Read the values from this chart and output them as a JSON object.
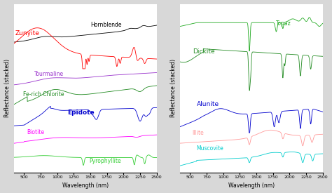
{
  "xmin": 350,
  "xmax": 2500,
  "xlabel": "Wavelength (nm)",
  "ylabel": "Reflectance (stacked)",
  "xticks": [
    500,
    750,
    1000,
    1250,
    1500,
    1750,
    2000,
    2250,
    2500
  ],
  "bg_color": "#D8D8D8",
  "left_color_map": {
    "Hornblende": "black",
    "Zunyite": "red",
    "Tourmaline": "#9932CC",
    "Fe-rich Chlorite": "#228B22",
    "Epidote": "#0000CD",
    "Biotite": "#FF00FF",
    "Pyrophyllite": "#32CD32"
  },
  "right_color_map": {
    "Topaz": "#22AA22",
    "Dickite": "#228B22",
    "Alunite": "#0000CD",
    "Illite": "#FF9999",
    "Muscovite": "#00CCCC"
  },
  "left_label_configs": [
    [
      "Hornblende",
      1500,
      2.18,
      "black",
      5.5,
      false
    ],
    [
      "Zunyite",
      370,
      2.05,
      "red",
      6.5,
      false
    ],
    [
      "Tourmaline",
      650,
      1.42,
      "#9932CC",
      5.5,
      false
    ],
    [
      "Fe-rich Chlorite",
      490,
      1.1,
      "#228B22",
      5.5,
      false
    ],
    [
      "Epidote",
      1150,
      0.82,
      "#0000CD",
      6.5,
      true
    ],
    [
      "Biotite",
      540,
      0.52,
      "#FF00FF",
      5.5,
      false
    ],
    [
      "Pyrophyllite",
      1480,
      0.08,
      "#32CD32",
      5.5,
      false
    ]
  ],
  "right_label_configs": [
    [
      "Topaz",
      1800,
      1.9,
      "#22AA22",
      5.5,
      false
    ],
    [
      "Dickite",
      540,
      1.52,
      "#228B22",
      6.5,
      false
    ],
    [
      "Alunite",
      600,
      0.82,
      "#0000CD",
      6.5,
      false
    ],
    [
      "Illite",
      530,
      0.43,
      "#FF9999",
      5.5,
      false
    ],
    [
      "Muscovite",
      590,
      0.23,
      "#00CCCC",
      5.5,
      false
    ]
  ]
}
